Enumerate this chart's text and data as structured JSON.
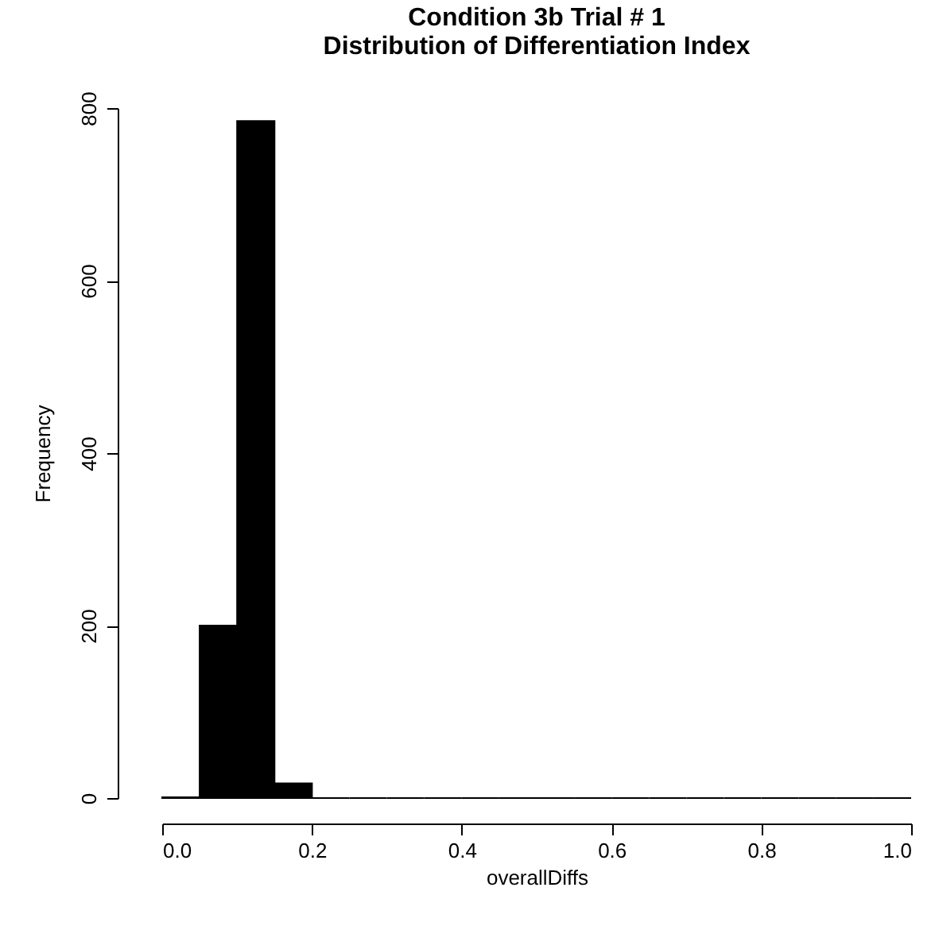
{
  "chart_data": {
    "type": "histogram",
    "title": "Condition 3b Trial # 1",
    "subtitle": "Distribution of Differentiation Index",
    "xlabel": "overallDiffs",
    "ylabel": "Frequency",
    "bins": [
      0,
      0.05,
      0.1,
      0.15,
      0.2,
      0.25,
      0.3,
      0.35,
      0.4,
      0.45,
      0.5,
      0.55,
      0.6,
      0.65,
      0.7,
      0.75,
      0.8,
      0.85,
      0.9,
      0.95,
      1
    ],
    "values": [
      1,
      200,
      785,
      17,
      0,
      0,
      0,
      0,
      0,
      0,
      0,
      0,
      0,
      0,
      0,
      0,
      0,
      0,
      0,
      0
    ],
    "color": "#000000",
    "xlim": [
      0,
      1
    ],
    "ylim": [
      0,
      800
    ],
    "xticks": [
      {
        "value": 0,
        "label": "0.0"
      },
      0.2,
      0.4,
      0.6,
      0.8,
      {
        "value": 1,
        "label": "1.0"
      }
    ],
    "yticks": [
      0,
      200,
      400,
      600,
      800
    ],
    "grid": false
  }
}
